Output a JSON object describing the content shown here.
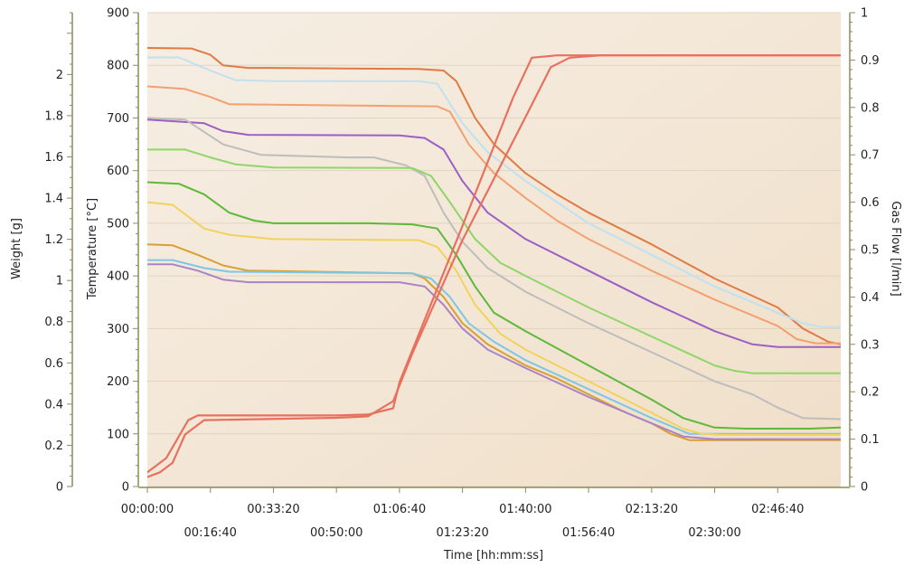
{
  "chart_data": {
    "type": "line",
    "xlabel": "Time [hh:mm:ss]",
    "ylabel_left_outer": "Weight [g]",
    "ylabel_left": "Temperature [°C]",
    "ylabel_right": "Gas Flow [l/min]",
    "xlim_seconds": [
      0,
      11000
    ],
    "x_tick_labels": [
      "00:00:00",
      "00:16:40",
      "00:33:20",
      "00:50:00",
      "01:06:40",
      "01:23:20",
      "01:40:00",
      "01:56:40",
      "02:13:20",
      "02:30:00",
      "02:46:40"
    ],
    "weight_axis": {
      "ylim": [
        0,
        2.3
      ],
      "tick_labels": [
        "0",
        "0.2",
        "0.4",
        "0.6",
        "0.8",
        "1",
        "1.2",
        "1.4",
        "1.6",
        "1.8",
        "2"
      ]
    },
    "temperature_axis": {
      "ylim": [
        0,
        900
      ],
      "tick_labels": [
        "0",
        "100",
        "200",
        "300",
        "400",
        "500",
        "600",
        "700",
        "800",
        "900"
      ]
    },
    "gas_flow_axis": {
      "ylim": [
        0,
        1
      ],
      "tick_labels": [
        "0",
        "0.1",
        "0.2",
        "0.3",
        "0.4",
        "0.5",
        "0.6",
        "0.7",
        "0.8",
        "0.9",
        "1"
      ]
    },
    "grid": true,
    "colors": {
      "plot_background_left": "#f6eee4",
      "plot_background_right": "#f0dfc8",
      "grid": "#e2d3c0",
      "axis": "#8f8a5a"
    },
    "series": [
      {
        "color": "#e07a45",
        "axis": "temperature",
        "points": [
          [
            0,
            833
          ],
          [
            700,
            832
          ],
          [
            1000,
            820
          ],
          [
            1200,
            800
          ],
          [
            1600,
            795
          ],
          [
            2000,
            795
          ],
          [
            4300,
            793
          ],
          [
            4700,
            790
          ],
          [
            4900,
            770
          ],
          [
            5200,
            700
          ],
          [
            5500,
            650
          ],
          [
            6000,
            595
          ],
          [
            6500,
            555
          ],
          [
            7000,
            520
          ],
          [
            8000,
            460
          ],
          [
            9000,
            395
          ],
          [
            10000,
            340
          ],
          [
            10400,
            300
          ],
          [
            10800,
            275
          ],
          [
            11000,
            270
          ]
        ]
      },
      {
        "color": "#f2a070",
        "axis": "temperature",
        "points": [
          [
            0,
            760
          ],
          [
            600,
            755
          ],
          [
            1000,
            740
          ],
          [
            1300,
            726
          ],
          [
            4600,
            722
          ],
          [
            4800,
            712
          ],
          [
            5100,
            650
          ],
          [
            5500,
            595
          ],
          [
            6000,
            548
          ],
          [
            6500,
            505
          ],
          [
            7000,
            470
          ],
          [
            8000,
            410
          ],
          [
            9000,
            355
          ],
          [
            10000,
            305
          ],
          [
            10300,
            280
          ],
          [
            10600,
            272
          ],
          [
            11000,
            272
          ]
        ]
      },
      {
        "color": "#bfe1f0",
        "axis": "temperature",
        "points": [
          [
            0,
            815
          ],
          [
            500,
            815
          ],
          [
            1000,
            790
          ],
          [
            1400,
            772
          ],
          [
            2000,
            770
          ],
          [
            4300,
            770
          ],
          [
            4600,
            765
          ],
          [
            5000,
            690
          ],
          [
            5400,
            635
          ],
          [
            6000,
            580
          ],
          [
            7000,
            500
          ],
          [
            8000,
            440
          ],
          [
            9000,
            380
          ],
          [
            10000,
            330
          ],
          [
            10400,
            310
          ],
          [
            10700,
            303
          ],
          [
            11000,
            303
          ]
        ]
      },
      {
        "color": "#9b5fc6",
        "axis": "temperature",
        "points": [
          [
            0,
            697
          ],
          [
            900,
            690
          ],
          [
            1200,
            675
          ],
          [
            1600,
            668
          ],
          [
            4000,
            667
          ],
          [
            4400,
            662
          ],
          [
            4700,
            640
          ],
          [
            5000,
            580
          ],
          [
            5400,
            520
          ],
          [
            6000,
            470
          ],
          [
            7000,
            410
          ],
          [
            8000,
            350
          ],
          [
            9000,
            295
          ],
          [
            9600,
            270
          ],
          [
            10000,
            265
          ],
          [
            11000,
            265
          ]
        ]
      },
      {
        "color": "#bdbdbd",
        "axis": "temperature",
        "points": [
          [
            0,
            700
          ],
          [
            600,
            697
          ],
          [
            1200,
            650
          ],
          [
            1800,
            630
          ],
          [
            3200,
            625
          ],
          [
            3600,
            625
          ],
          [
            4100,
            610
          ],
          [
            4400,
            590
          ],
          [
            4700,
            520
          ],
          [
            5000,
            465
          ],
          [
            5400,
            415
          ],
          [
            6000,
            370
          ],
          [
            7000,
            310
          ],
          [
            8000,
            255
          ],
          [
            9000,
            200
          ],
          [
            9600,
            175
          ],
          [
            10000,
            150
          ],
          [
            10400,
            130
          ],
          [
            11000,
            128
          ]
        ]
      },
      {
        "color": "#8ed669",
        "axis": "temperature",
        "points": [
          [
            0,
            640
          ],
          [
            600,
            640
          ],
          [
            1000,
            625
          ],
          [
            1400,
            612
          ],
          [
            2000,
            606
          ],
          [
            4200,
            605
          ],
          [
            4500,
            590
          ],
          [
            4800,
            540
          ],
          [
            5200,
            470
          ],
          [
            5600,
            425
          ],
          [
            6000,
            400
          ],
          [
            7000,
            340
          ],
          [
            8000,
            285
          ],
          [
            9000,
            230
          ],
          [
            9300,
            220
          ],
          [
            9600,
            215
          ],
          [
            11000,
            215
          ]
        ]
      },
      {
        "color": "#d9a030",
        "axis": "temperature",
        "points": [
          [
            0,
            460
          ],
          [
            400,
            458
          ],
          [
            800,
            440
          ],
          [
            1200,
            420
          ],
          [
            1600,
            410
          ],
          [
            4200,
            405
          ],
          [
            4400,
            395
          ],
          [
            4700,
            360
          ],
          [
            5000,
            310
          ],
          [
            5400,
            270
          ],
          [
            6000,
            230
          ],
          [
            6500,
            205
          ],
          [
            7000,
            175
          ],
          [
            7600,
            140
          ],
          [
            8000,
            120
          ],
          [
            8300,
            100
          ],
          [
            8600,
            88
          ],
          [
            11000,
            88
          ]
        ]
      },
      {
        "color": "#7dc7e6",
        "axis": "temperature",
        "points": [
          [
            0,
            430
          ],
          [
            400,
            430
          ],
          [
            900,
            415
          ],
          [
            1300,
            408
          ],
          [
            4200,
            405
          ],
          [
            4500,
            395
          ],
          [
            4800,
            360
          ],
          [
            5100,
            310
          ],
          [
            5500,
            275
          ],
          [
            6000,
            240
          ],
          [
            7000,
            185
          ],
          [
            8000,
            130
          ],
          [
            8600,
            100
          ],
          [
            11000,
            100
          ]
        ]
      },
      {
        "color": "#f2d25a",
        "axis": "temperature",
        "points": [
          [
            0,
            540
          ],
          [
            400,
            535
          ],
          [
            900,
            490
          ],
          [
            1300,
            478
          ],
          [
            2000,
            470
          ],
          [
            4300,
            468
          ],
          [
            4600,
            455
          ],
          [
            4900,
            410
          ],
          [
            5200,
            345
          ],
          [
            5600,
            290
          ],
          [
            6000,
            260
          ],
          [
            7000,
            200
          ],
          [
            8000,
            140
          ],
          [
            8500,
            110
          ],
          [
            8800,
            100
          ],
          [
            9100,
            98
          ],
          [
            11000,
            98
          ]
        ]
      },
      {
        "color": "#5fb83a",
        "axis": "temperature",
        "points": [
          [
            0,
            578
          ],
          [
            500,
            575
          ],
          [
            900,
            555
          ],
          [
            1300,
            520
          ],
          [
            1700,
            505
          ],
          [
            2000,
            500
          ],
          [
            3500,
            500
          ],
          [
            4200,
            498
          ],
          [
            4600,
            490
          ],
          [
            4900,
            440
          ],
          [
            5200,
            380
          ],
          [
            5500,
            330
          ],
          [
            6000,
            295
          ],
          [
            7000,
            230
          ],
          [
            8000,
            165
          ],
          [
            8500,
            130
          ],
          [
            9000,
            112
          ],
          [
            9500,
            110
          ],
          [
            10500,
            110
          ],
          [
            11000,
            112
          ]
        ]
      },
      {
        "color": "#a983c9",
        "axis": "temperature",
        "points": [
          [
            0,
            422
          ],
          [
            400,
            422
          ],
          [
            800,
            410
          ],
          [
            1200,
            393
          ],
          [
            1600,
            388
          ],
          [
            4000,
            388
          ],
          [
            4400,
            380
          ],
          [
            4700,
            345
          ],
          [
            5000,
            300
          ],
          [
            5400,
            260
          ],
          [
            6000,
            225
          ],
          [
            7000,
            170
          ],
          [
            8000,
            120
          ],
          [
            8500,
            95
          ],
          [
            9000,
            90
          ],
          [
            11000,
            90
          ]
        ]
      },
      {
        "color": "#e8705e",
        "axis": "gas_flow",
        "points": [
          [
            0,
            0.03
          ],
          [
            300,
            0.06
          ],
          [
            650,
            0.14
          ],
          [
            800,
            0.15
          ],
          [
            3000,
            0.15
          ],
          [
            3500,
            0.152
          ],
          [
            3900,
            0.165
          ],
          [
            4000,
            0.22
          ],
          [
            5000,
            0.55
          ],
          [
            5800,
            0.82
          ],
          [
            6100,
            0.905
          ],
          [
            6500,
            0.91
          ],
          [
            8000,
            0.91
          ],
          [
            9500,
            0.91
          ],
          [
            11000,
            0.91
          ]
        ]
      },
      {
        "color": "#e8705e",
        "axis": "gas_flow",
        "points": [
          [
            0,
            0.02
          ],
          [
            200,
            0.03
          ],
          [
            400,
            0.05
          ],
          [
            600,
            0.11
          ],
          [
            900,
            0.14
          ],
          [
            3000,
            0.145
          ],
          [
            3500,
            0.148
          ],
          [
            3900,
            0.18
          ],
          [
            4200,
            0.28
          ],
          [
            5000,
            0.52
          ],
          [
            6000,
            0.78
          ],
          [
            6400,
            0.885
          ],
          [
            6700,
            0.905
          ],
          [
            7200,
            0.91
          ],
          [
            11000,
            0.91
          ]
        ]
      }
    ]
  }
}
